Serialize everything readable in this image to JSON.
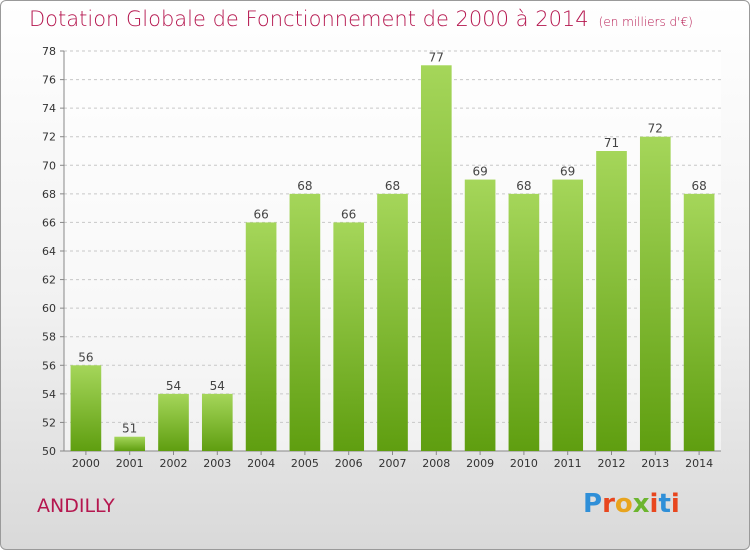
{
  "title": "Dotation Globale de Fonctionnement de 2000 à 2014",
  "unit": "(en milliers d'€)",
  "commune": "ANDILLY",
  "logo": {
    "letters": [
      "P",
      "r",
      "o",
      "x",
      "i",
      "t",
      "i"
    ],
    "colors": [
      "#2f8fd8",
      "#e8461e",
      "#e8a41e",
      "#6cb52f",
      "#e8461e",
      "#2f8fd8",
      "#e8461e"
    ]
  },
  "colors": {
    "bar_top": "#a5d65a",
    "bar_bottom": "#5f9e10",
    "title": "#b5174f"
  },
  "chart_data": {
    "type": "bar",
    "title": "Dotation Globale de Fonctionnement de 2000 à 2014",
    "subtitle": "(en milliers d'€)",
    "categories": [
      "2000",
      "2001",
      "2002",
      "2003",
      "2004",
      "2005",
      "2006",
      "2007",
      "2008",
      "2009",
      "2010",
      "2011",
      "2012",
      "2013",
      "2014"
    ],
    "values": [
      56,
      51,
      54,
      54,
      66,
      68,
      66,
      68,
      77,
      69,
      68,
      69,
      71,
      72,
      68
    ],
    "ylim": [
      50,
      78
    ],
    "yticks": [
      50,
      52,
      54,
      56,
      58,
      60,
      62,
      64,
      66,
      68,
      70,
      72,
      74,
      76,
      78
    ],
    "grid": true,
    "xlabel": "",
    "ylabel": ""
  }
}
